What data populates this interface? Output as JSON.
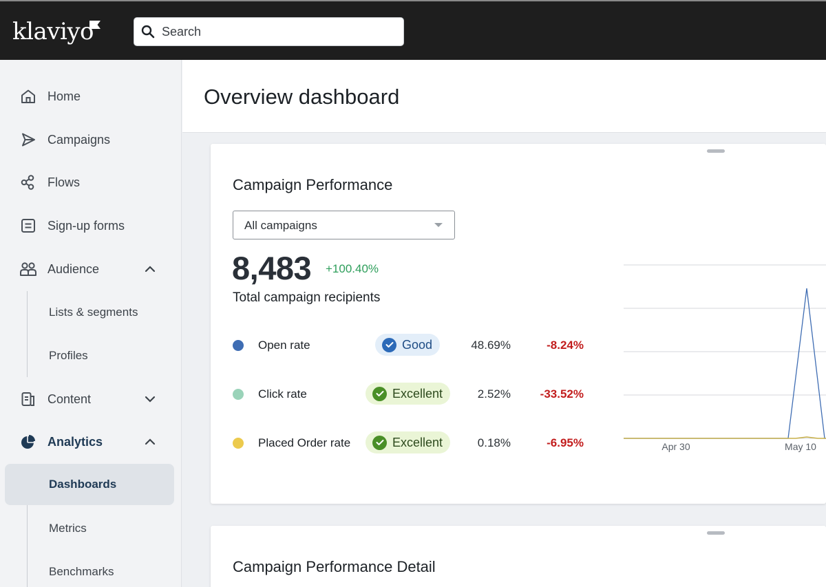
{
  "topbar": {
    "logo_text": "klaviyo",
    "search_placeholder": "Search"
  },
  "sidebar": {
    "items": [
      {
        "label": "Home",
        "icon": "home-icon"
      },
      {
        "label": "Campaigns",
        "icon": "send-icon"
      },
      {
        "label": "Flows",
        "icon": "flows-icon"
      },
      {
        "label": "Sign-up forms",
        "icon": "form-icon"
      },
      {
        "label": "Audience",
        "icon": "users-icon",
        "expanded": true
      },
      {
        "label": "Content",
        "icon": "content-icon",
        "expanded": false
      },
      {
        "label": "Analytics",
        "icon": "pie-chart-icon",
        "expanded": true
      }
    ],
    "audience_sub": [
      "Lists & segments",
      "Profiles"
    ],
    "analytics_sub": [
      "Dashboards",
      "Metrics",
      "Benchmarks"
    ],
    "selected": "Dashboards"
  },
  "page": {
    "title": "Overview dashboard"
  },
  "card1": {
    "title": "Campaign Performance",
    "dropdown_value": "All campaigns",
    "total_value": "8,483",
    "total_delta": "+100.40%",
    "total_label": "Total campaign recipients",
    "metrics": [
      {
        "name": "Open rate",
        "color": "#3f6db3",
        "badge": "Good",
        "value": "48.69%",
        "change": "-8.24%"
      },
      {
        "name": "Click rate",
        "color": "#9ad3b9",
        "badge": "Excellent",
        "value": "2.52%",
        "change": "-33.52%"
      },
      {
        "name": "Placed Order rate",
        "color": "#ecca4d",
        "badge": "Excellent",
        "value": "0.18%",
        "change": "-6.95%"
      }
    ]
  },
  "card2": {
    "title": "Campaign Performance Detail"
  },
  "chart_data": {
    "type": "line",
    "x_tick_labels": [
      "Apr 30",
      "May 10"
    ],
    "series": [
      {
        "name": "Open rate",
        "color": "#3f6db3",
        "shape": "flat at 0, single sharp spike to about 85% of the visible axis height just before May 10"
      },
      {
        "name": "Placed Order rate",
        "color": "#ecca4d",
        "shape": "flat near 0"
      }
    ],
    "grid": "horizontal",
    "gridline_count": 5
  }
}
